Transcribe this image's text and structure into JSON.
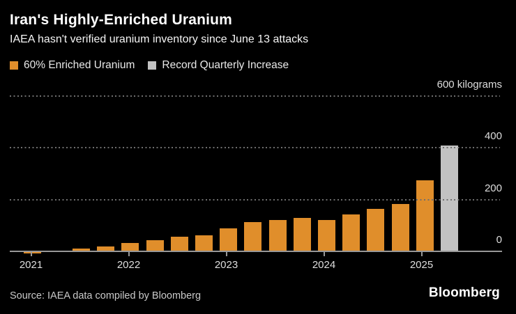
{
  "header": {
    "title": "Iran's Highly-Enriched Uranium",
    "subtitle": "IAEA hasn't verified uranium inventory since June 13 attacks"
  },
  "legend": {
    "items": [
      {
        "label": "60% Enriched Uranium",
        "color": "#E08E2B"
      },
      {
        "label": "Record Quarterly Increase",
        "color": "#C2C2C2"
      }
    ]
  },
  "footer": {
    "source": "Source: IAEA data compiled by Bloomberg",
    "brand": "Bloomberg"
  },
  "chart_data": {
    "type": "bar",
    "title": "Iran's Highly-Enriched Uranium",
    "subtitle": "IAEA hasn't verified uranium inventory since June 13 attacks",
    "y_unit": "kilograms",
    "unit_top_label": "600 kilograms",
    "ylim": [
      0,
      600
    ],
    "y_ticks": [
      0,
      200,
      400,
      600
    ],
    "grid": "horizontal-dotted",
    "legend_position": "top-left",
    "x_year_ticks": [
      "2021",
      "2022",
      "2023",
      "2024",
      "2025"
    ],
    "series": [
      {
        "name": "60% Enriched Uranium",
        "color": "#E08E2B",
        "points": [
          {
            "x": "2021 Q1",
            "kg": 2.4
          },
          {
            "x": "2021 Q2",
            "kg": 0
          },
          {
            "x": "2021 Q3",
            "kg": 10
          },
          {
            "x": "2021 Q4",
            "kg": 17.7
          },
          {
            "x": "2022 Q1",
            "kg": 33.2
          },
          {
            "x": "2022 Q2",
            "kg": 43.1
          },
          {
            "x": "2022 Q3",
            "kg": 55.6
          },
          {
            "x": "2022 Q4",
            "kg": 62.3
          },
          {
            "x": "2023 Q1",
            "kg": 87.5
          },
          {
            "x": "2023 Q2",
            "kg": 114.1
          },
          {
            "x": "2023 Q3",
            "kg": 121.6
          },
          {
            "x": "2023 Q4",
            "kg": 128.3
          },
          {
            "x": "2024 Q1",
            "kg": 121.5
          },
          {
            "x": "2024 Q2",
            "kg": 142.1
          },
          {
            "x": "2024 Q3",
            "kg": 164.7
          },
          {
            "x": "2024 Q4",
            "kg": 182.3
          },
          {
            "x": "2025 Q1",
            "kg": 274.8
          }
        ]
      },
      {
        "name": "Record Quarterly Increase",
        "color": "#C2C2C2",
        "points": [
          {
            "x": "2025 Q2",
            "kg": 408.6
          }
        ]
      }
    ]
  }
}
